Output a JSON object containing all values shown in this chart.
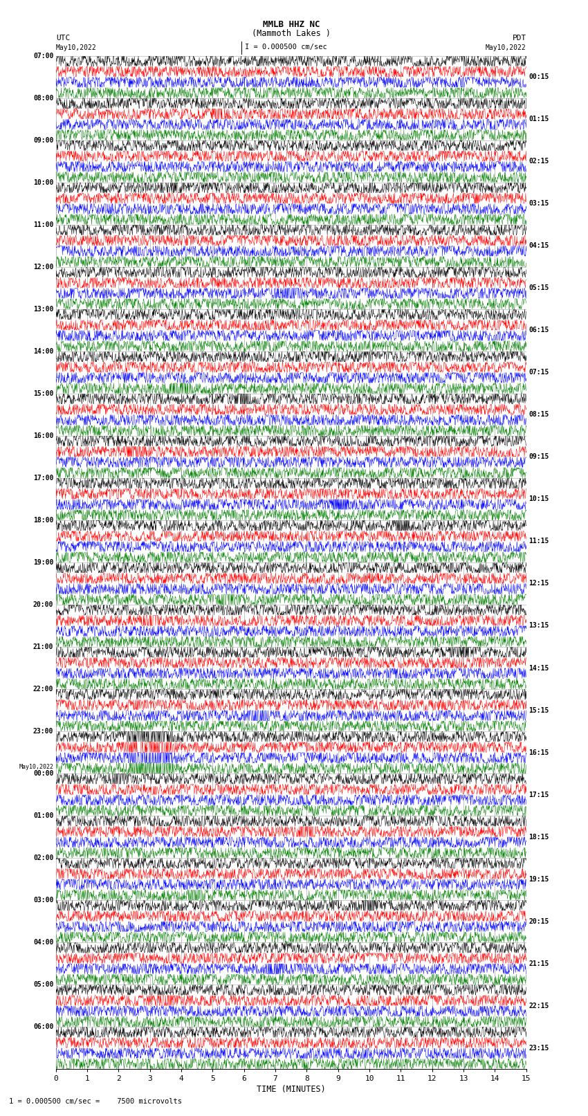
{
  "title_line1": "MMLB HHZ NC",
  "title_line2": "(Mammoth Lakes )",
  "title_line3": "I = 0.000500 cm/sec",
  "xlabel": "TIME (MINUTES)",
  "footer": "1 = 0.000500 cm/sec =    7500 microvolts",
  "colors": [
    "black",
    "red",
    "blue",
    "green"
  ],
  "bg_color": "white",
  "grid_color": "#aaaaaa",
  "xmin": 0,
  "xmax": 15,
  "fig_width": 8.5,
  "fig_height": 16.13,
  "dpi": 100,
  "left_label_times": [
    "07:00",
    "08:00",
    "09:00",
    "10:00",
    "11:00",
    "12:00",
    "13:00",
    "14:00",
    "15:00",
    "16:00",
    "17:00",
    "18:00",
    "19:00",
    "20:00",
    "21:00",
    "22:00",
    "23:00",
    "May10,2022",
    "00:00",
    "01:00",
    "02:00",
    "03:00",
    "04:00",
    "05:00",
    "06:00"
  ],
  "right_label_times": [
    "00:15",
    "01:15",
    "02:15",
    "03:15",
    "04:15",
    "05:15",
    "06:15",
    "07:15",
    "08:15",
    "09:15",
    "10:15",
    "11:15",
    "12:15",
    "13:15",
    "14:15",
    "15:15",
    "16:15",
    "17:15",
    "18:15",
    "19:15",
    "20:15",
    "21:15",
    "22:15",
    "23:15"
  ],
  "noise_amp": 0.12,
  "event_group_idx": 16,
  "num_time_slots": 24,
  "num_channels": 4
}
